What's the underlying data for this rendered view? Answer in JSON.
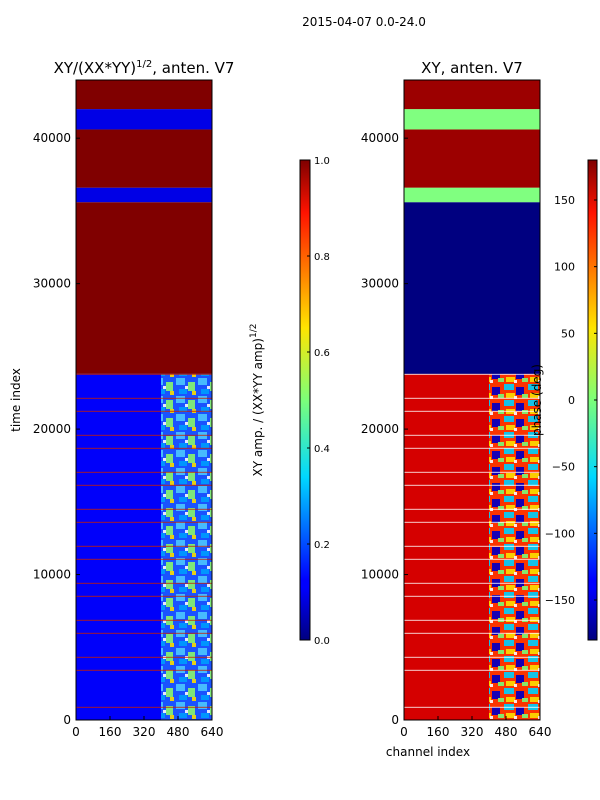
{
  "suptitle": "2015-04-07 0.0-24.0",
  "chart_data": [
    {
      "type": "heatmap",
      "title_main": "XY/(XX*YY)",
      "title_sup": "1/2",
      "title_rest": ", anten. V7",
      "xlabel": "",
      "ylabel": "time index",
      "xlim": [
        0,
        640
      ],
      "ylim": [
        0,
        44000
      ],
      "x_ticks": [
        0,
        160,
        320,
        480,
        640
      ],
      "y_ticks": [
        0,
        10000,
        20000,
        30000,
        40000
      ],
      "colorbar": {
        "label_main": "XY amp. / (XX*YY amp)",
        "label_sup": "1/2",
        "range": [
          0.0,
          1.0
        ],
        "ticks": [
          "0.0",
          "0.2",
          "0.4",
          "0.6",
          "0.8",
          "1.0"
        ],
        "tick_values": [
          0.0,
          0.2,
          0.4,
          0.6,
          0.8,
          1.0
        ]
      },
      "time_blocks": [
        {
          "start": 0,
          "end": 23800,
          "value": 0.12,
          "note": "low coherence, bright band ch 400-640"
        },
        {
          "start": 23800,
          "end": 35600,
          "value": 1.0
        },
        {
          "start": 35600,
          "end": 36600,
          "value": 0.1
        },
        {
          "start": 36600,
          "end": 40600,
          "value": 1.0
        },
        {
          "start": 40600,
          "end": 42000,
          "value": 0.1
        },
        {
          "start": 42000,
          "end": 44000,
          "value": 1.0
        }
      ]
    },
    {
      "type": "heatmap",
      "title_main": "XY, anten. V7",
      "xlabel": "channel index",
      "ylabel": "",
      "xlim": [
        0,
        640
      ],
      "ylim": [
        0,
        44000
      ],
      "x_ticks": [
        0,
        160,
        320,
        480,
        640
      ],
      "y_ticks": [
        0,
        10000,
        20000,
        30000,
        40000
      ],
      "colorbar": {
        "label_main": "phase (deg)",
        "range": [
          -180,
          180
        ],
        "ticks": [
          "150",
          "100",
          "50",
          "0",
          "−50",
          "−100",
          "−150"
        ],
        "tick_values": [
          150,
          100,
          50,
          0,
          -50,
          -100,
          -150
        ]
      },
      "time_blocks": [
        {
          "start": 0,
          "end": 23800,
          "value": 150,
          "note": "mixed phase, red-dominant, noisy ch 400-640"
        },
        {
          "start": 23800,
          "end": 35600,
          "value": -180
        },
        {
          "start": 35600,
          "end": 36600,
          "value": 0
        },
        {
          "start": 36600,
          "end": 40600,
          "value": 170
        },
        {
          "start": 40600,
          "end": 42000,
          "value": 0
        },
        {
          "start": 42000,
          "end": 44000,
          "value": 170
        }
      ]
    }
  ]
}
